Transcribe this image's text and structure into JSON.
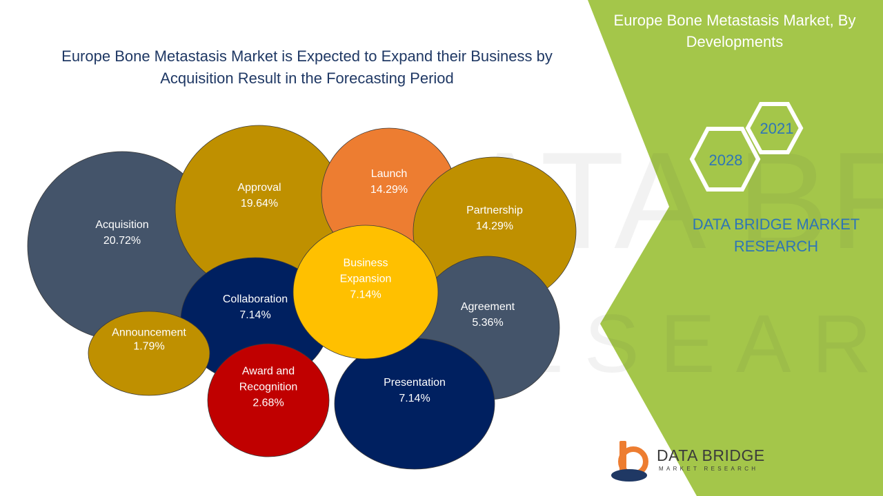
{
  "header": {
    "title": "Europe Bone Metastasis Market is Expected to Expand their Business by Acquisition Result in the Forecasting Period"
  },
  "sidebar": {
    "title": "Europe Bone Metastasis Market, By Developments",
    "year_start": "2021",
    "year_end": "2028",
    "brand": "DATA BRIDGE MARKET RESEARCH",
    "accent_color": "#a4c64a"
  },
  "logo": {
    "main": "DATA BRIDGE",
    "sub": "MARKET RESEARCH"
  },
  "chart_data": {
    "type": "bubble",
    "title": "",
    "series": [
      {
        "label": "Acquisition",
        "value": 20.72,
        "value_text": "20.72%",
        "color": "#44546a"
      },
      {
        "label": "Announcement",
        "value": 1.79,
        "value_text": "1.79%",
        "color": "#bf9000"
      },
      {
        "label": "Approval",
        "value": 19.64,
        "value_text": "19.64%",
        "color": "#bf9000"
      },
      {
        "label": "Launch",
        "value": 14.29,
        "value_text": "14.29%",
        "color": "#ed7d31"
      },
      {
        "label": "Collaboration",
        "value": 7.14,
        "value_text": "7.14%",
        "color": "#002060"
      },
      {
        "label": "Presentation",
        "value": 7.14,
        "value_text": "7.14%",
        "color": "#002060"
      },
      {
        "label": "Agreement",
        "value": 5.36,
        "value_text": "5.36%",
        "color": "#44546a"
      },
      {
        "label": "Award and Recognition",
        "value": 2.68,
        "value_text": "2.68%",
        "color": "#c00000"
      },
      {
        "label": "Business Expansion",
        "value": 7.14,
        "value_text": "7.14%",
        "color": "#ffc000"
      },
      {
        "label": "Partnership",
        "value": 14.29,
        "value_text": "14.29%",
        "color": "#bf9000"
      }
    ]
  }
}
